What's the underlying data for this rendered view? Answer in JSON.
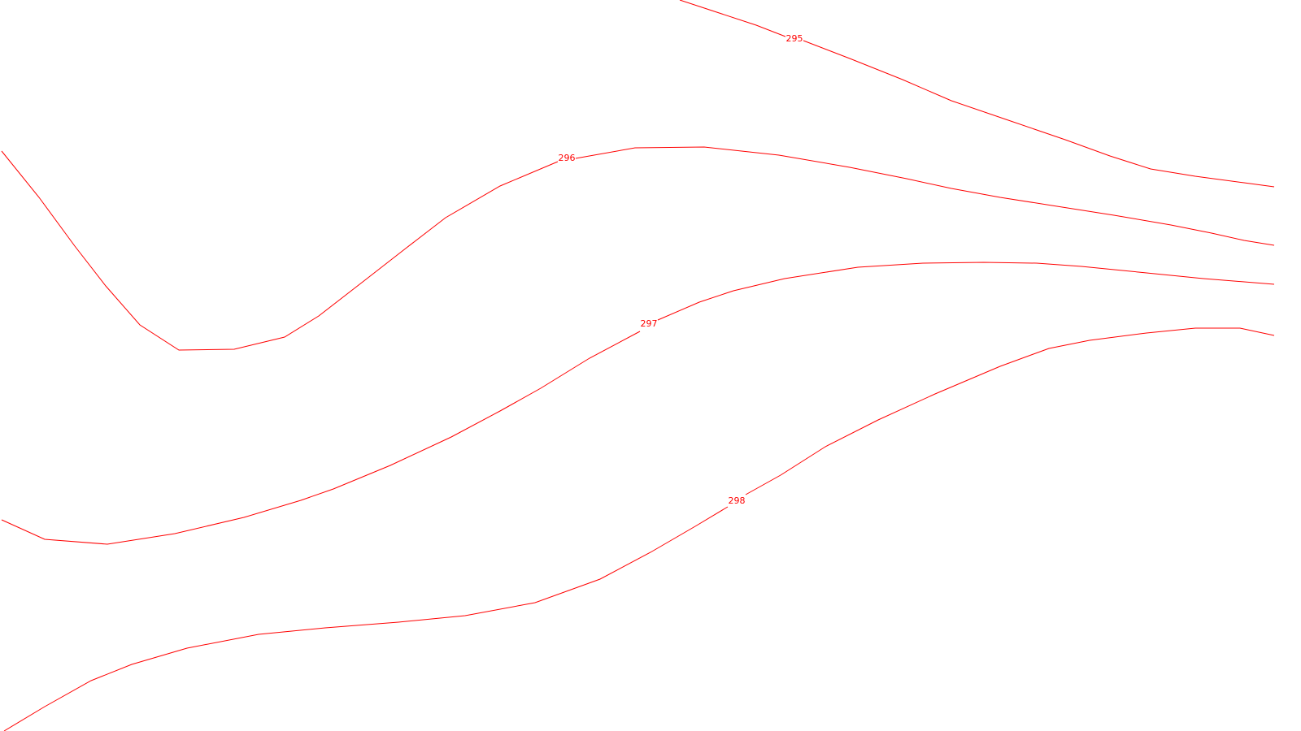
{
  "contours": {
    "color": "#ff0000",
    "lines": [
      {
        "label": "295"
      },
      {
        "label": "296"
      },
      {
        "label": ""
      },
      {
        "label": "297"
      },
      {
        "label": ""
      },
      {
        "label": "298"
      }
    ]
  }
}
